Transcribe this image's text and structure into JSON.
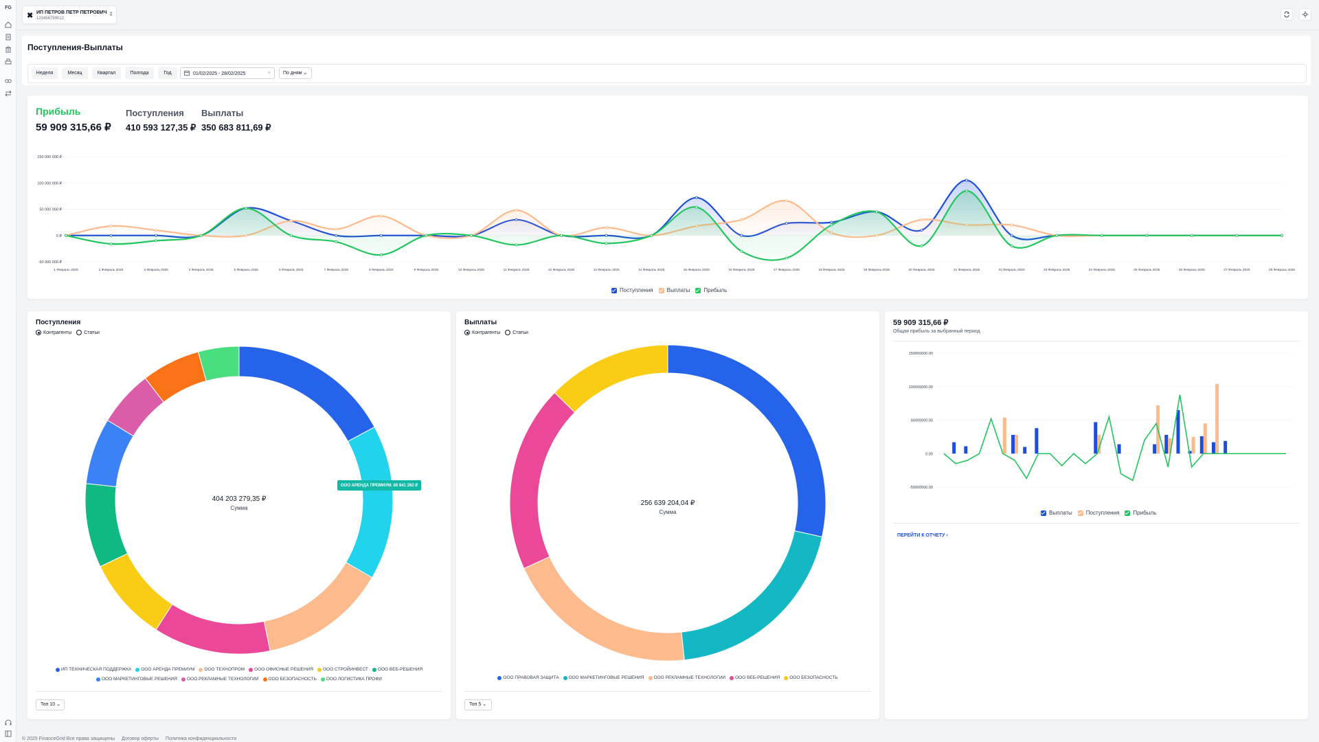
{
  "app": {
    "logo": "FG"
  },
  "org": {
    "name": "ИП ПЕТРОВ ПЕТР ПЕТРОВИЧ",
    "inn": "123456789012"
  },
  "page": {
    "title": "Поступления-Выплаты"
  },
  "filters": {
    "periods": [
      "Неделя",
      "Месяц",
      "Квартал",
      "Полгода",
      "Год"
    ],
    "date_range": "01/02/2025 - 28/02/2025",
    "grouping": "По дням"
  },
  "kpi": {
    "profit_label": "Прибыль",
    "profit_value": "59 909 315,66 ₽",
    "income_label": "Поступления",
    "income_value": "410 593 127,35 ₽",
    "payout_label": "Выплаты",
    "payout_value": "350 683 811,69 ₽"
  },
  "chart_data": [
    {
      "type": "line",
      "y_ticks": [
        "150 000 000 ₽",
        "100 000 000 ₽",
        "50 000 000 ₽",
        "0 ₽",
        "-50 000 000 ₽"
      ],
      "ylim": [
        -50000000,
        150000000
      ],
      "categories": [
        "1 Февраль 2025",
        "2 Февраль 2025",
        "3 Февраль 2025",
        "4 Февраль 2025",
        "5 Февраль 2025",
        "6 Февраль 2025",
        "7 Февраль 2025",
        "8 Февраль 2025",
        "9 Февраль 2025",
        "10 Февраль 2025",
        "11 Февраль 2025",
        "12 Февраль 2025",
        "13 Февраль 2025",
        "14 Февраль 2025",
        "15 Февраль 2025",
        "16 Февраль 2025",
        "17 Февраль 2025",
        "18 Февраль 2025",
        "19 Февраль 2025",
        "20 Февраль 2025",
        "21 Февраль 2025",
        "22 Февраль 2025",
        "23 Февраль 2025",
        "24 Февраль 2025",
        "25 Февраль 2025",
        "26 Февраль 2025",
        "27 Февраль 2025",
        "28 Февраль 2025"
      ],
      "series": [
        {
          "name": "Поступления",
          "color": "#1d4ed8",
          "values": [
            0,
            0,
            0,
            0,
            52000000,
            28000000,
            0,
            0,
            0,
            0,
            30000000,
            0,
            0,
            0,
            72000000,
            0,
            23000000,
            25000000,
            45000000,
            10000000,
            105000000,
            0,
            0,
            0,
            0,
            0,
            0,
            0
          ]
        },
        {
          "name": "Выплаты",
          "color": "#fdba8c",
          "values": [
            0,
            18000000,
            10000000,
            0,
            0,
            28000000,
            12000000,
            37000000,
            0,
            0,
            48000000,
            0,
            15000000,
            0,
            18000000,
            30000000,
            66000000,
            5000000,
            0,
            30000000,
            20000000,
            20000000,
            0,
            0,
            0,
            0,
            0,
            0
          ]
        },
        {
          "name": "Прибыль",
          "color": "#22c55e",
          "values": [
            0,
            -16000000,
            -10000000,
            0,
            52000000,
            0,
            -12000000,
            -37000000,
            0,
            0,
            -18000000,
            0,
            -15000000,
            0,
            54000000,
            -30000000,
            -43000000,
            20000000,
            45000000,
            -20000000,
            85000000,
            -20000000,
            0,
            0,
            0,
            0,
            0,
            0
          ]
        }
      ]
    },
    {
      "type": "pie",
      "title": "Поступления",
      "total": "404 203 279,35 ₽",
      "center_label": "Сумма",
      "labels": [
        "ИП ТЕХНИЧЕСКАЯ ПОДДЕРЖКА",
        "ООО АРЕНДА ПРЕМИУМ",
        "ООО ТЕХНОПРОМ",
        "ООО ОФИСНЫЕ РЕШЕНИЯ",
        "ООО СТРОЙИНВЕСТ",
        "ООО ВЕБ-РЕШЕНИЯ",
        "ООО МАРКЕТИНГОВЫЕ РЕШЕНИЯ",
        "ООО РЕКЛАМНЫЕ ТЕХНОЛОГИИ",
        "ООО БЕЗОПАСНОСТЬ",
        "ООО ЛОГИСТИКА ПРОФИ"
      ],
      "values": [
        64000000,
        60841262,
        50000000,
        46000000,
        33000000,
        33000000,
        26000000,
        22000000,
        23000000,
        16000000
      ],
      "colors": [
        "#2563eb",
        "#22d3ee",
        "#fdba8c",
        "#ec4899",
        "#facc15",
        "#10b981",
        "#3b82f6",
        "#db5daa",
        "#f97316",
        "#4ade80"
      ]
    },
    {
      "type": "pie",
      "title": "Выплаты",
      "total": "256 639 204,04 ₽",
      "center_label": "Сумма",
      "labels": [
        "ООО ПРАВОВАЯ ЗАЩИТА",
        "ООО МАРКЕТИНГОВЫЕ РЕШЕНИЯ",
        "ООО РЕКЛАМНЫЕ ТЕХНОЛОГИИ",
        "ООО ВЕБ-РЕШЕНИЯ",
        "ООО БЕЗОПАСНОСТЬ"
      ],
      "values": [
        73000000,
        51000000,
        51000000,
        49000000,
        32600000
      ],
      "colors": [
        "#2563eb",
        "#14b8c4",
        "#fdba8c",
        "#ec4899",
        "#facc15"
      ]
    },
    {
      "type": "bar",
      "y_ticks": [
        "150000000.00",
        "100000000.00",
        "50000000.00",
        "0.00",
        "-50000000.00"
      ],
      "ylim": [
        -50000000,
        150000000
      ],
      "series": [
        {
          "name": "Выплаты",
          "color": "#1d4ed8",
          "values": [
            0,
            17000000,
            11000000,
            0,
            0,
            0,
            28000000,
            10000000,
            38000000,
            0,
            0,
            0,
            0,
            47000000,
            0,
            14000000,
            0,
            0,
            14000000,
            28000000,
            65000000,
            4000000,
            26000000,
            17000000,
            19000000,
            0,
            0,
            0,
            0,
            0
          ]
        },
        {
          "name": "Поступления",
          "color": "#fdba8c",
          "values": [
            0,
            0,
            0,
            0,
            0,
            54000000,
            28000000,
            0,
            0,
            0,
            0,
            0,
            0,
            28000000,
            0,
            0,
            0,
            0,
            72000000,
            23000000,
            0,
            25000000,
            45000000,
            104000000,
            0,
            0,
            0,
            0,
            0,
            0
          ]
        },
        {
          "name": "Прибыль",
          "color": "#22c55e",
          "values": [
            0,
            -15000000,
            -10000000,
            0,
            52000000,
            0,
            -10000000,
            -37000000,
            0,
            0,
            -18000000,
            0,
            -15000000,
            0,
            55000000,
            -30000000,
            -40000000,
            20000000,
            45000000,
            -20000000,
            88000000,
            -20000000,
            0,
            0,
            0,
            0,
            0,
            0,
            0,
            0
          ]
        }
      ]
    }
  ],
  "donut_left": {
    "radio_a": "Контрагенты",
    "radio_b": "Статьи",
    "tooltip": "ООО АРЕНДА ПРЕМИУМ: 60 841 262 ₽",
    "top_select": "Топ 10"
  },
  "donut_right": {
    "radio_a": "Контрагенты",
    "radio_b": "Статьи",
    "top_select": "Топ 5"
  },
  "profit_panel": {
    "value": "59 909 315,66 ₽",
    "subtitle": "Общая прибыль за выбранный период",
    "link": "ПЕРЕЙТИ К ОТЧЕТУ"
  },
  "footer": {
    "copyright": "© 2025 FinanceGrid Все права защищены",
    "offer": "Договор оферты",
    "privacy": "Политика конфиденциальности"
  }
}
